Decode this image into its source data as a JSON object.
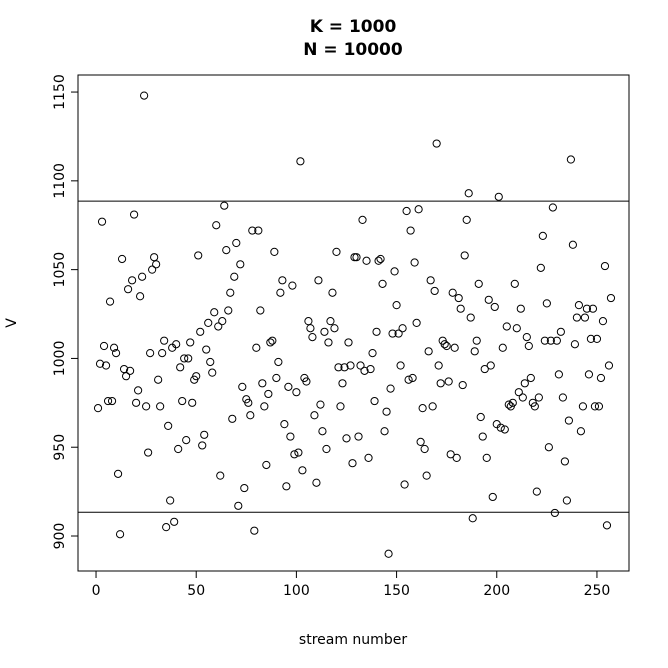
{
  "chart_data": {
    "type": "scatter",
    "title": "K = 1000",
    "subtitle": "N = 10000",
    "x_label": "stream number",
    "y_label": "V",
    "xlim": [
      -9,
      266
    ],
    "ylim": [
      880.3,
      1159.6
    ],
    "xticks": [
      0,
      50,
      100,
      150,
      200,
      250
    ],
    "yticks": [
      900,
      950,
      1000,
      1050,
      1100,
      1150
    ],
    "hlines": [
      1088.6,
      913.4
    ],
    "color": "#000000",
    "x": [
      1,
      2,
      3,
      4,
      5,
      6,
      7,
      8,
      9,
      10,
      11,
      12,
      13,
      14,
      15,
      16,
      17,
      18,
      19,
      20,
      21,
      22,
      23,
      24,
      25,
      26,
      27,
      28,
      29,
      30,
      31,
      32,
      33,
      34,
      35,
      36,
      37,
      38,
      39,
      40,
      41,
      42,
      43,
      44,
      45,
      46,
      47,
      48,
      49,
      50,
      51,
      52,
      53,
      54,
      55,
      56,
      57,
      58,
      59,
      60,
      61,
      62,
      63,
      64,
      65,
      66,
      67,
      68,
      69,
      70,
      71,
      72,
      73,
      74,
      75,
      76,
      77,
      78,
      79,
      80,
      81,
      82,
      83,
      84,
      85,
      86,
      87,
      88,
      89,
      90,
      91,
      92,
      93,
      94,
      95,
      96,
      97,
      98,
      99,
      100,
      101,
      102,
      103,
      104,
      105,
      106,
      107,
      108,
      109,
      110,
      111,
      112,
      113,
      114,
      115,
      116,
      117,
      118,
      119,
      120,
      121,
      122,
      123,
      124,
      125,
      126,
      127,
      128,
      129,
      130,
      131,
      132,
      133,
      134,
      135,
      136,
      137,
      138,
      139,
      140,
      141,
      142,
      143,
      144,
      145,
      146,
      147,
      148,
      149,
      150,
      151,
      152,
      153,
      154,
      155,
      156,
      157,
      158,
      159,
      160,
      161,
      162,
      163,
      164,
      165,
      166,
      167,
      168,
      169,
      170,
      171,
      172,
      173,
      174,
      175,
      176,
      177,
      178,
      179,
      180,
      181,
      182,
      183,
      184,
      185,
      186,
      187,
      188,
      189,
      190,
      191,
      192,
      193,
      194,
      195,
      196,
      197,
      198,
      199,
      200,
      201,
      202,
      203,
      204,
      205,
      206,
      207,
      208,
      209,
      210,
      211,
      212,
      213,
      214,
      215,
      216,
      217,
      218,
      219,
      220,
      221,
      222,
      223,
      224,
      225,
      226,
      227,
      228,
      229,
      230,
      231,
      232,
      233,
      234,
      235,
      236,
      237,
      238,
      239,
      240,
      241,
      242,
      243,
      244,
      245,
      246,
      247,
      248,
      249,
      250,
      251,
      252,
      253,
      254,
      255,
      256,
      257
    ],
    "values": [
      972,
      997,
      1077,
      1007,
      996,
      976,
      1032,
      976,
      1006,
      1003,
      935,
      901,
      1056,
      994,
      990,
      1039,
      993,
      1044,
      1081,
      975,
      982,
      1035,
      1046,
      1148,
      973,
      947,
      1003,
      1050,
      1057,
      1053,
      988,
      973,
      1003,
      1010,
      905,
      962,
      920,
      1006,
      908,
      1008,
      949,
      995,
      976,
      1000,
      954,
      1000,
      1009,
      975,
      988,
      990,
      1058,
      1015,
      951,
      957,
      1005,
      1020,
      998,
      992,
      1026,
      1075,
      1018,
      934,
      1021,
      1086,
      1061,
      1027,
      1037,
      966,
      1046,
      1065,
      917,
      1053,
      984,
      927,
      977,
      975,
      968,
      1072,
      903,
      1006,
      1072,
      1027,
      986,
      973,
      940,
      980,
      1009,
      1010,
      1060,
      989,
      998,
      1037,
      1044,
      963,
      928,
      984,
      956,
      1041,
      946,
      981,
      947,
      1111,
      937,
      989,
      987,
      1021,
      1017,
      1012,
      968,
      930,
      1044,
      974,
      959,
      1015,
      949,
      1009,
      1021,
      1037,
      1017,
      1060,
      995,
      973,
      986,
      995,
      955,
      1009,
      996,
      941,
      1057,
      1057,
      956,
      996,
      1078,
      993,
      1055,
      944,
      994,
      1003,
      976,
      1015,
      1055,
      1056,
      1042,
      959,
      970,
      890,
      983,
      1014,
      1049,
      1030,
      1014,
      996,
      1017,
      929,
      1083,
      988,
      1072,
      989,
      1054,
      1020,
      1084,
      953,
      972,
      949,
      934,
      1004,
      1044,
      973,
      1038,
      1121,
      996,
      986,
      1010,
      1008,
      1007,
      987,
      946,
      1037,
      1006,
      944,
      1034,
      1028,
      985,
      1058,
      1078,
      1093,
      1023,
      910,
      1004,
      1010,
      1042,
      967,
      956,
      994,
      944,
      1033,
      996,
      922,
      1029,
      963,
      1091,
      961,
      1006,
      960,
      1018,
      974,
      973,
      975,
      1042,
      1017,
      981,
      1028,
      978,
      986,
      1012,
      1007,
      989,
      975,
      973,
      925,
      978,
      1051,
      1069,
      1010,
      1031,
      950,
      1010,
      1085,
      913,
      1010,
      991,
      1015,
      978,
      942,
      920,
      965,
      1112,
      1064,
      1008,
      1023,
      1030,
      959,
      973,
      1023,
      1028,
      991,
      1011,
      1028,
      973,
      1011,
      973,
      989,
      1021,
      1052,
      906,
      996,
      1034
    ]
  }
}
